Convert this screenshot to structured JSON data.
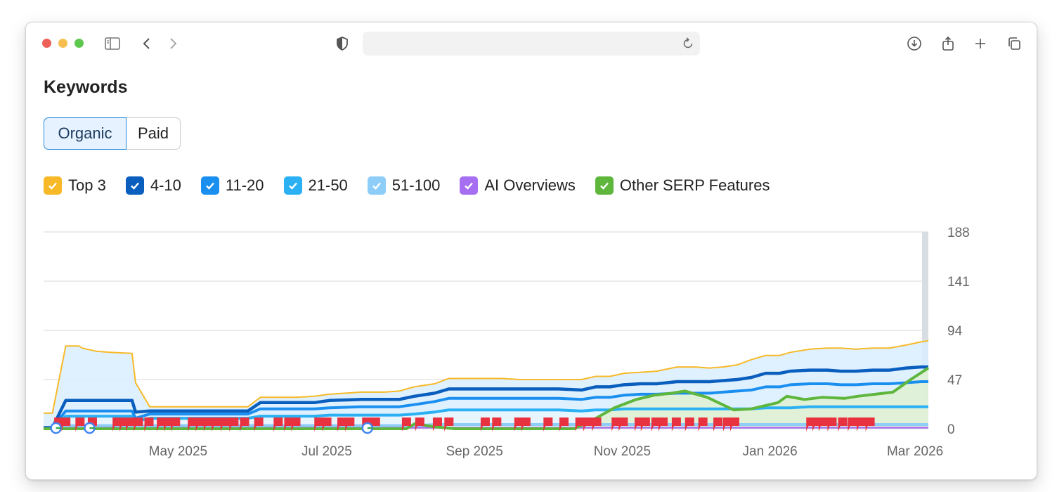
{
  "page": {
    "title": "Keywords"
  },
  "tabs": [
    {
      "label": "Organic",
      "active": true
    },
    {
      "label": "Paid",
      "active": false
    }
  ],
  "legend": [
    {
      "label": "Top 3",
      "color": "#f7b928"
    },
    {
      "label": "4-10",
      "color": "#0a5fbe"
    },
    {
      "label": "11-20",
      "color": "#1a8ff0"
    },
    {
      "label": "21-50",
      "color": "#2bb1f3"
    },
    {
      "label": "51-100",
      "color": "#8fcdf9"
    },
    {
      "label": "AI Overviews",
      "color": "#a66ef0"
    },
    {
      "label": "Other SERP Features",
      "color": "#5eb63d"
    }
  ],
  "chart_data": {
    "type": "area",
    "x_tick_labels": [
      "May 2025",
      "Jul 2025",
      "Sep 2025",
      "Nov 2025",
      "Jan 2026",
      "Mar 2026"
    ],
    "y_ticks": [
      0,
      47,
      94,
      141,
      188
    ],
    "ylim": [
      0,
      188
    ],
    "grid": true,
    "stacked": true,
    "x": [
      0,
      0.6,
      1.0,
      2.5,
      4.0,
      4.4,
      4.9,
      6.0,
      7.5,
      10.0,
      10.4,
      12.0,
      14.4,
      16.5,
      19.2,
      21.6,
      23.1,
      24.5,
      26.5,
      28.6,
      30.6,
      32.3,
      35.9,
      38.5,
      40.2,
      41.9,
      44.2,
      45.8,
      48.3,
      50.2,
      51.8,
      53.8,
      55.3,
      58.2,
      60.8,
      62.4,
      64.0,
      65.6,
      67.5,
      69.3,
      71.6,
      73.6,
      75.3,
      76.8,
      78.4,
      80.0,
      81.6,
      83.2,
      84.4,
      86.6,
      88.6,
      90.1,
      91.8,
      93.7,
      95.6,
      97.5,
      99.2,
      100.0
    ],
    "series": [
      {
        "name": "Top 3",
        "values": [
          14,
          14,
          14,
          52,
          52,
          50,
          49,
          47,
          46,
          45,
          28,
          4,
          4,
          4,
          4,
          4,
          4,
          5,
          5,
          5,
          6,
          6,
          7,
          7,
          8,
          9,
          9,
          10,
          10,
          10,
          10,
          9,
          9,
          9,
          10,
          10,
          10,
          11,
          11,
          12,
          14,
          14,
          13,
          13,
          14,
          17,
          17,
          17,
          18,
          20,
          21,
          22,
          21,
          21,
          21,
          22,
          24,
          25
        ]
      },
      {
        "name": "4-10",
        "values": [
          0,
          0,
          0,
          10,
          10,
          10,
          10,
          10,
          10,
          10,
          6,
          3,
          3,
          3,
          3,
          3,
          3,
          6,
          6,
          6,
          6,
          7,
          7,
          7,
          7,
          8,
          8,
          9,
          9,
          9,
          9,
          9,
          9,
          9,
          9,
          10,
          10,
          10,
          10,
          10,
          11,
          11,
          11,
          11,
          11,
          12,
          13,
          13,
          13,
          13,
          13,
          13,
          13,
          13,
          13,
          14,
          14,
          14
        ]
      },
      {
        "name": "11-20",
        "values": [
          0,
          0,
          0,
          5,
          5,
          5,
          5,
          5,
          5,
          5,
          3,
          4,
          4,
          4,
          4,
          4,
          4,
          7,
          7,
          7,
          7,
          7,
          8,
          8,
          8,
          9,
          10,
          11,
          11,
          11,
          11,
          11,
          11,
          11,
          11,
          12,
          12,
          13,
          14,
          14,
          15,
          15,
          15,
          16,
          17,
          18,
          20,
          20,
          22,
          22,
          22,
          21,
          21,
          22,
          22,
          23,
          24,
          24
        ]
      },
      {
        "name": "21-50",
        "values": [
          0,
          0,
          0,
          9,
          9,
          9,
          9,
          9,
          9,
          9,
          5,
          7,
          7,
          7,
          7,
          7,
          7,
          9,
          9,
          9,
          9,
          10,
          10,
          10,
          10,
          11,
          12,
          14,
          14,
          14,
          14,
          14,
          14,
          14,
          13,
          14,
          14,
          15,
          15,
          15,
          15,
          15,
          15,
          15,
          15,
          15,
          16,
          16,
          16,
          17,
          17,
          17,
          17,
          17,
          17,
          17,
          17,
          17
        ]
      },
      {
        "name": "51-100",
        "values": [
          0,
          0,
          0,
          2,
          2,
          2,
          2,
          2,
          2,
          2,
          1,
          2,
          2,
          2,
          2,
          2,
          2,
          2,
          2,
          2,
          2,
          2,
          2,
          2,
          2,
          2,
          3,
          3,
          3,
          3,
          3,
          3,
          3,
          3,
          3,
          3,
          3,
          3,
          3,
          3,
          3,
          3,
          3,
          3,
          3,
          3,
          3,
          3,
          3,
          3,
          3,
          3,
          3,
          3,
          3,
          3,
          3,
          3
        ]
      },
      {
        "name": "AI Overviews",
        "values": [
          1,
          1,
          1,
          1,
          1,
          1,
          1,
          1,
          1,
          1,
          1,
          1,
          1,
          1,
          1,
          1,
          1,
          1,
          1,
          1,
          1,
          1,
          1,
          1,
          1,
          1,
          1,
          1,
          1,
          1,
          1,
          1,
          1,
          1,
          1,
          1,
          1,
          1,
          1,
          1,
          1,
          1,
          1,
          1,
          1,
          1,
          1,
          1,
          1,
          1,
          1,
          1,
          1,
          1,
          1,
          1,
          1,
          1
        ]
      }
    ],
    "other_serp_features": {
      "name": "Other SERP Features",
      "x": [
        0,
        24.0,
        33.0,
        35.5,
        38.0,
        41.0,
        42.0,
        44.0,
        46.5,
        55.0,
        57.5,
        60.0,
        62.0,
        64.5,
        67.0,
        69.0,
        71.0,
        72.5,
        75.0,
        78.0,
        80.0,
        83.0,
        84.0,
        86.0,
        88.0,
        90.5,
        92.0,
        94.0,
        96.0,
        98.0,
        100.0
      ],
      "values": [
        0,
        0,
        0,
        0,
        0,
        0,
        5,
        2,
        0,
        0,
        0,
        0,
        8,
        20,
        28,
        32,
        34,
        36,
        30,
        18,
        19,
        25,
        31,
        28,
        30,
        29,
        31,
        33,
        35,
        47,
        58
      ]
    },
    "event_markers": {
      "google_updates": 3,
      "flags": 62
    }
  }
}
